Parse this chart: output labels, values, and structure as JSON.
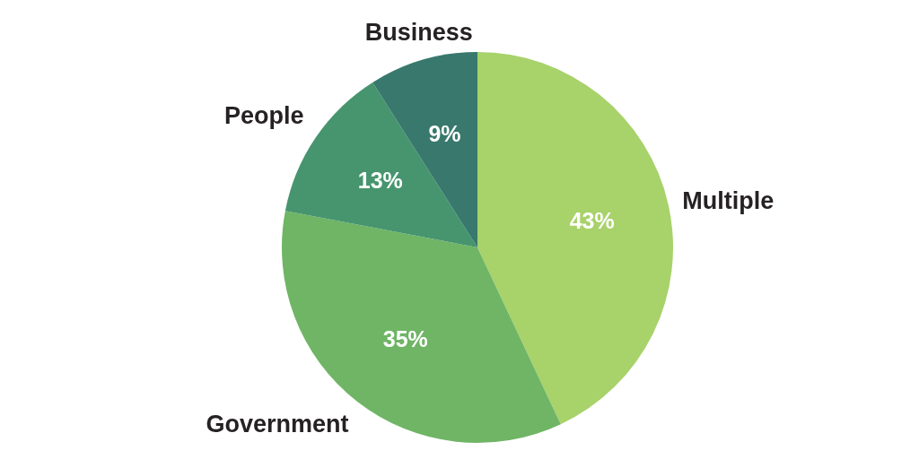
{
  "chart_data": {
    "type": "pie",
    "categories": [
      "Multiple",
      "Government",
      "People",
      "Business"
    ],
    "values": [
      43,
      35,
      13,
      9
    ],
    "value_labels": [
      "43%",
      "35%",
      "13%",
      "9%"
    ],
    "colors": [
      "#a8d26a",
      "#6fb565",
      "#46956e",
      "#38786d"
    ]
  }
}
